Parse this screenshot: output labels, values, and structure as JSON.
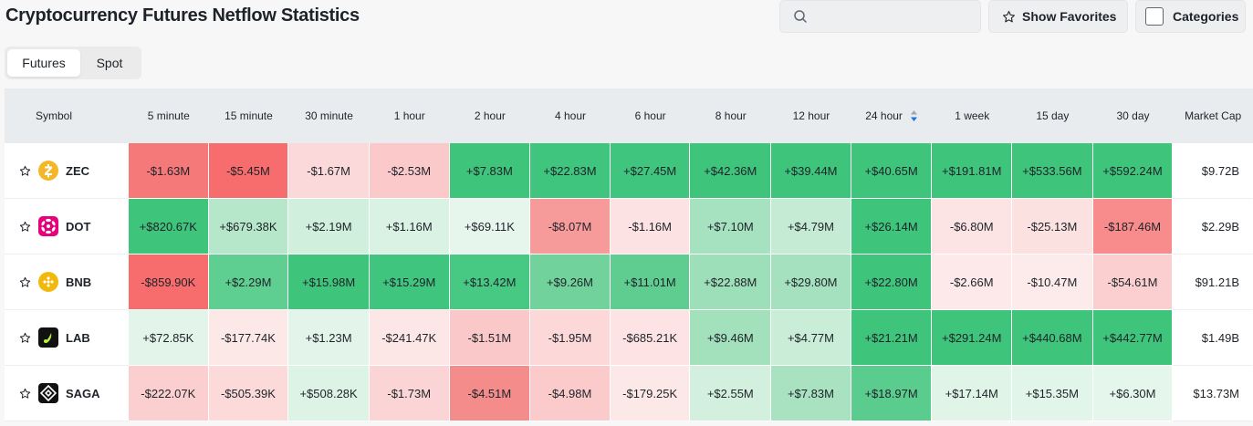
{
  "title": "Cryptocurrency Futures Netflow Statistics",
  "search": {
    "placeholder": "",
    "value": ""
  },
  "favorites_label": "Show Favorites",
  "categories_label": "Categories",
  "tabs": [
    {
      "label": "Futures",
      "active": true
    },
    {
      "label": "Spot",
      "active": false
    }
  ],
  "columns": [
    "Symbol",
    "5 minute",
    "15 minute",
    "30 minute",
    "1 hour",
    "2 hour",
    "4 hour",
    "6 hour",
    "8 hour",
    "12 hour",
    "24 hour",
    "1 week",
    "15 day",
    "30 day",
    "Market Cap"
  ],
  "sorted_column": "24 hour",
  "rows": [
    {
      "symbol": "ZEC",
      "icon": "zec-icon",
      "icon_color": "#f4b728",
      "values": [
        "-$1.63M",
        "-$5.45M",
        "-$1.67M",
        "-$2.53M",
        "+$7.83M",
        "+$22.83M",
        "+$27.45M",
        "+$42.36M",
        "+$39.44M",
        "+$40.65M",
        "+$191.81M",
        "+$533.56M",
        "+$592.24M"
      ],
      "colors": [
        "#f6797a",
        "#f76c6c",
        "#fbd9da",
        "#fbc9ca",
        "#3ec47b",
        "#3fc57d",
        "#3fc57d",
        "#3ec47b",
        "#3ec47b",
        "#3ec47b",
        "#3ec47b",
        "#3ec47b",
        "#3ec47b"
      ],
      "market_cap": "$9.72B"
    },
    {
      "symbol": "DOT",
      "icon": "dot-icon",
      "icon_color": "#e6007a",
      "values": [
        "+$820.67K",
        "+$679.38K",
        "+$2.19M",
        "+$1.16M",
        "+$69.11K",
        "-$8.07M",
        "-$1.16M",
        "+$7.10M",
        "+$4.79M",
        "+$26.14M",
        "-$6.80M",
        "-$25.13M",
        "-$187.46M"
      ],
      "colors": [
        "#3ec47b",
        "#b6e7cb",
        "#d0efdc",
        "#d9f2e3",
        "#e7f6ed",
        "#f79a9a",
        "#fce2e2",
        "#a7e2c0",
        "#c6ebd5",
        "#3ec47b",
        "#fce4e4",
        "#fce1e1",
        "#f88c8c"
      ],
      "market_cap": "$2.29B"
    },
    {
      "symbol": "BNB",
      "icon": "bnb-icon",
      "icon_color": "#f0b90b",
      "values": [
        "-$859.90K",
        "+$2.29M",
        "+$15.98M",
        "+$15.29M",
        "+$13.42M",
        "+$9.26M",
        "+$11.01M",
        "+$22.88M",
        "+$29.80M",
        "+$22.80M",
        "-$2.66M",
        "-$10.47M",
        "-$54.61M"
      ],
      "colors": [
        "#f76c6c",
        "#5ecf90",
        "#3ec47b",
        "#3fc57d",
        "#47c883",
        "#71d29c",
        "#5fcd90",
        "#9ddfb8",
        "#a5e1bf",
        "#3ec47b",
        "#fde9e9",
        "#fdeaea",
        "#fbcfd0"
      ],
      "market_cap": "$91.21B"
    },
    {
      "symbol": "LAB",
      "icon": "lab-icon",
      "icon_color": "#111111",
      "values": [
        "+$72.85K",
        "-$177.74K",
        "+$1.23M",
        "-$241.47K",
        "-$1.51M",
        "-$1.95M",
        "-$685.21K",
        "+$9.46M",
        "+$4.77M",
        "+$21.21M",
        "+$291.24M",
        "+$440.68M",
        "+$442.77M"
      ],
      "colors": [
        "#e3f5ea",
        "#fde8e8",
        "#e3f5ea",
        "#fde6e6",
        "#fbc8c9",
        "#fcd8d9",
        "#fde3e3",
        "#a3e1bd",
        "#c9edd7",
        "#3ec47b",
        "#3ec47b",
        "#3ec47b",
        "#3ec47b"
      ],
      "market_cap": "$1.49B"
    },
    {
      "symbol": "SAGA",
      "icon": "saga-icon",
      "icon_color": "#111111",
      "values": [
        "-$222.07K",
        "-$505.39K",
        "+$508.28K",
        "-$1.73M",
        "-$4.51M",
        "-$4.98M",
        "-$179.25K",
        "+$2.55M",
        "+$7.83M",
        "+$18.97M",
        "+$17.14M",
        "+$15.35M",
        "+$6.30M"
      ],
      "colors": [
        "#fbcfd0",
        "#fcdada",
        "#dcf3e5",
        "#fbd5d6",
        "#f58c8c",
        "#fbcbcb",
        "#fde8e8",
        "#d3f0de",
        "#a8e2c1",
        "#5acc8d",
        "#e0f4e8",
        "#e2f5ea",
        "#e5f6ec"
      ],
      "market_cap": "$13.73M"
    }
  ],
  "colors": {
    "header_bg": "#e9ecef",
    "positive": "#3ec47b",
    "negative": "#f76c6c"
  }
}
